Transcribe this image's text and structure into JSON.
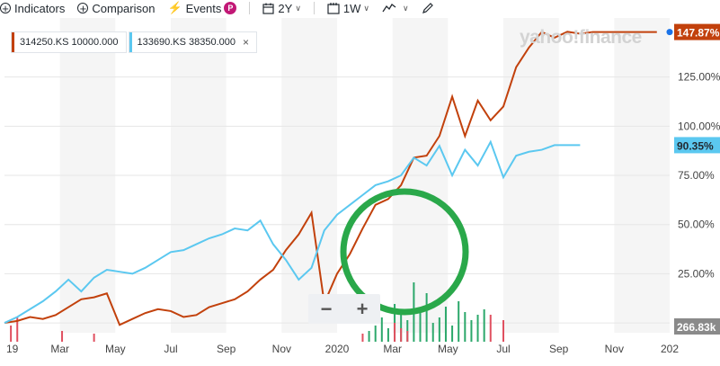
{
  "toolbar": {
    "indicators": "Indicators",
    "comparison": "Comparison",
    "events": "Events",
    "events_badge": "P",
    "range": "2Y",
    "interval": "1W"
  },
  "legend": {
    "series1": "314250.KS 10000.000",
    "series2": "133690.KS 38350.000",
    "close": "×"
  },
  "watermark": "yahoo!finance",
  "zoom": {
    "minus": "−",
    "plus": "+"
  },
  "colors": {
    "series1": "#c2410c",
    "series2": "#5bc8f0",
    "volume_up": "#2ca86b",
    "volume_down": "#e05060",
    "highlight": "#2aa84a"
  },
  "chart_data": {
    "type": "line",
    "x_tick_labels": [
      "19",
      "Mar",
      "May",
      "Jul",
      "Sep",
      "Nov",
      "2020",
      "Mar",
      "May",
      "Jul",
      "Sep",
      "Nov",
      "202"
    ],
    "y_tick_labels": [
      "125.00%",
      "100.00%",
      "75.00%",
      "50.00%",
      "25.00%",
      "0.00%"
    ],
    "y_ticks": [
      125,
      100,
      75,
      50,
      25,
      0
    ],
    "ylim": [
      -5,
      155
    ],
    "xlim": [
      0,
      104
    ],
    "grid": true,
    "last_value_labels": [
      "147.87%",
      "90.35%",
      "266.83k"
    ],
    "series": [
      {
        "name": "314250.KS 10000.000",
        "x": [
          0,
          2,
          4,
          6,
          8,
          10,
          12,
          14,
          16,
          18,
          20,
          22,
          24,
          26,
          28,
          30,
          32,
          34,
          36,
          38,
          40,
          42,
          44,
          46,
          48,
          50,
          52,
          54,
          56,
          58,
          60,
          62,
          64,
          66,
          68,
          70,
          72,
          74,
          76,
          78,
          80,
          82,
          84,
          86,
          88,
          90,
          92,
          94,
          96,
          98,
          100,
          101,
          102
        ],
        "values": [
          0,
          1,
          3,
          2,
          4,
          8,
          12,
          13,
          15,
          -1,
          2,
          5,
          7,
          6,
          3,
          4,
          8,
          10,
          12,
          16,
          22,
          27,
          37,
          45,
          56,
          10,
          25,
          35,
          48,
          60,
          63,
          70,
          84,
          85,
          95,
          115,
          95,
          113,
          103,
          110,
          130,
          140,
          147.87,
          145,
          148,
          147,
          147.87,
          147.87,
          147.87,
          147.87,
          147.87,
          147.87,
          147.87
        ]
      },
      {
        "name": "133690.KS 38350.000",
        "x": [
          0,
          2,
          4,
          6,
          8,
          10,
          12,
          14,
          16,
          18,
          20,
          22,
          24,
          26,
          28,
          30,
          32,
          34,
          36,
          38,
          40,
          42,
          44,
          46,
          48,
          50,
          52,
          54,
          56,
          58,
          60,
          62,
          64,
          66,
          68,
          70,
          72,
          74,
          76,
          78,
          80,
          82,
          84,
          86,
          88,
          90
        ],
        "values": [
          0,
          3,
          7,
          11,
          16,
          22,
          16,
          23,
          27,
          26,
          25,
          28,
          32,
          36,
          37,
          40,
          43,
          45,
          48,
          47,
          52,
          40,
          32,
          22,
          28,
          47,
          55,
          60,
          65,
          70,
          72,
          75,
          84,
          80,
          90,
          75,
          88,
          80,
          92,
          74,
          85,
          87,
          88,
          90.35,
          90.35,
          90.35
        ]
      }
    ],
    "volume": {
      "up": [
        [
          57,
          4
        ],
        [
          58,
          6
        ],
        [
          59,
          9
        ],
        [
          60,
          5
        ],
        [
          61,
          14
        ],
        [
          62,
          10
        ],
        [
          63,
          8
        ],
        [
          64,
          22
        ],
        [
          65,
          12
        ],
        [
          66,
          18
        ],
        [
          67,
          7
        ],
        [
          68,
          9
        ],
        [
          69,
          13
        ],
        [
          70,
          6
        ],
        [
          71,
          15
        ],
        [
          72,
          11
        ],
        [
          73,
          8
        ],
        [
          74,
          10
        ],
        [
          75,
          12
        ]
      ],
      "down": [
        [
          1,
          6
        ],
        [
          2,
          9
        ],
        [
          9,
          4
        ],
        [
          14,
          3
        ],
        [
          56,
          3
        ],
        [
          61,
          7
        ],
        [
          62,
          5
        ],
        [
          63,
          4
        ],
        [
          76,
          10
        ],
        [
          78,
          8
        ]
      ]
    }
  }
}
